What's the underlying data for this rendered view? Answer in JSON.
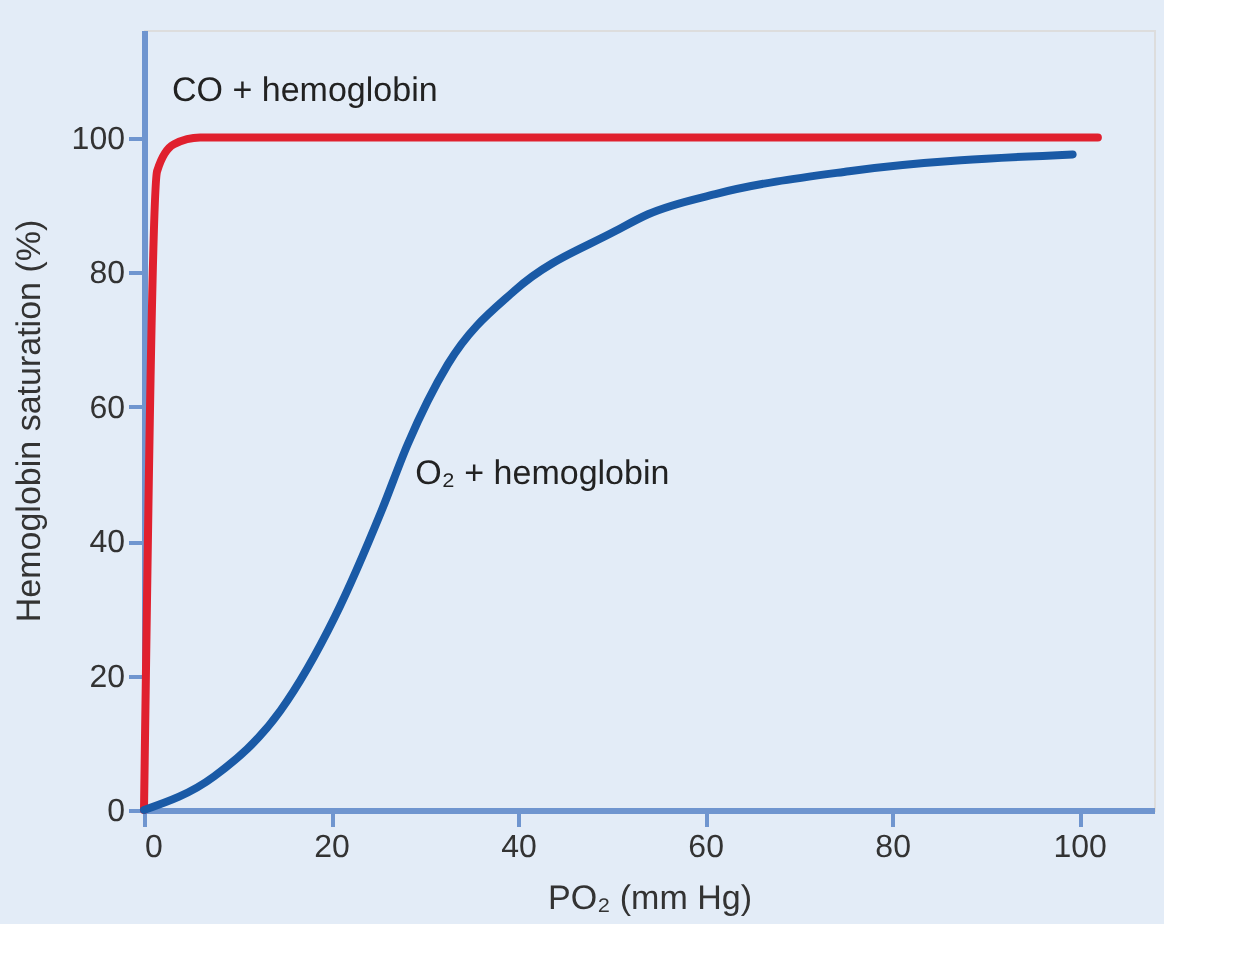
{
  "chart_data": {
    "type": "line",
    "xlabel": "PO₂ (mm Hg)",
    "ylabel": "Hemoglobin saturation (%)",
    "xlim": [
      0,
      108
    ],
    "ylim": [
      0,
      116
    ],
    "xticks": [
      0,
      20,
      40,
      60,
      80,
      100
    ],
    "yticks": [
      0,
      20,
      40,
      60,
      80,
      100
    ],
    "grid": false,
    "legend": false,
    "marker": "none",
    "line_style": "solid",
    "series": [
      {
        "name": "CO + hemoglobin",
        "color": "#e0202e",
        "x": [
          0,
          1.4,
          3.2,
          6,
          20,
          50,
          80,
          102
        ],
        "values": [
          0,
          95,
          99,
          100,
          100,
          100,
          100,
          100
        ]
      },
      {
        "name": "O₂ + hemoglobin",
        "color": "#1a5aa6",
        "x": [
          0,
          7.5,
          14.6,
          20.4,
          25.4,
          28.2,
          32.5,
          39.6,
          50.4,
          53.9,
          61.1,
          75.4,
          99.3
        ],
        "values": [
          0,
          5,
          14.8,
          28.7,
          44.5,
          54.4,
          66.3,
          77.2,
          86.1,
          88.6,
          91.6,
          95,
          97.5
        ]
      }
    ]
  }
}
